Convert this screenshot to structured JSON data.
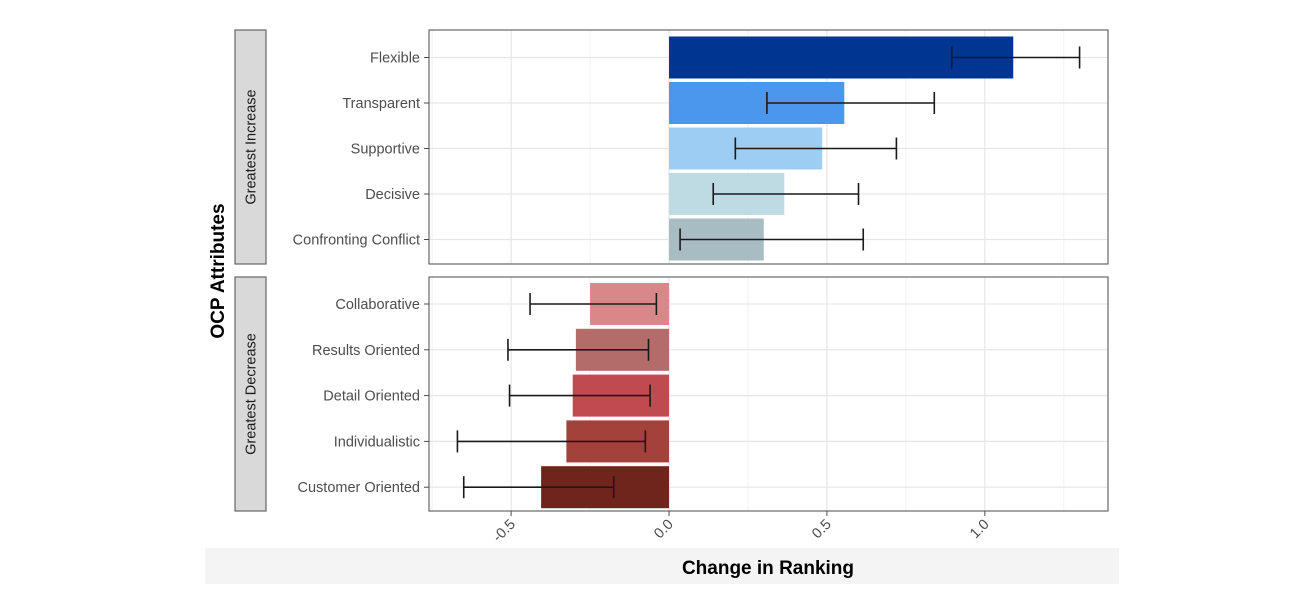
{
  "chart_data": {
    "type": "bar",
    "orientation": "horizontal",
    "xlabel": "Change in Ranking",
    "ylabel": "OCP Attributes",
    "xlim": [
      -0.76,
      1.39
    ],
    "x_ticks": [
      -0.5,
      0.0,
      0.5,
      1.0
    ],
    "x_tick_labels": [
      "-0.5",
      "0.0",
      "0.5",
      "1.0"
    ],
    "grid": true,
    "legend": "none",
    "facets": [
      {
        "label": "Greatest Increase",
        "categories": [
          "Flexible",
          "Transparent",
          "Supportive",
          "Decisive",
          "Confronting Conflict"
        ],
        "values": [
          1.09,
          0.555,
          0.485,
          0.365,
          0.3
        ],
        "error_low": [
          0.895,
          0.31,
          0.21,
          0.14,
          0.035
        ],
        "error_high": [
          1.3,
          0.84,
          0.72,
          0.6,
          0.615
        ],
        "colors": [
          "#003591",
          "#4b97ee",
          "#9dcdf2",
          "#bedbe3",
          "#a8bcc4"
        ]
      },
      {
        "label": "Greatest Decrease",
        "categories": [
          "Collaborative",
          "Results Oriented",
          "Detail Oriented",
          "Individualistic",
          "Customer Oriented"
        ],
        "values": [
          -0.25,
          -0.295,
          -0.305,
          -0.325,
          -0.405
        ],
        "error_low": [
          -0.44,
          -0.51,
          -0.505,
          -0.67,
          -0.65
        ],
        "error_high": [
          -0.04,
          -0.065,
          -0.06,
          -0.075,
          -0.175
        ],
        "colors": [
          "#d98889",
          "#b46c6b",
          "#c14a50",
          "#a2423a",
          "#6f241c"
        ]
      }
    ]
  }
}
